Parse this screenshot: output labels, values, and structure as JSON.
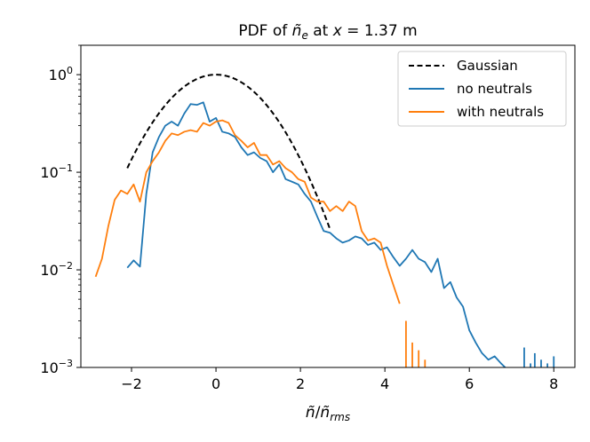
{
  "chart_data": {
    "type": "line",
    "title": "PDF of ñ_e at x = 1.37 m",
    "title_parts": {
      "prefix": "PDF of ",
      "base": "ñ",
      "sub": "e",
      "mid": " at ",
      "var": "x",
      "suffix": " = 1.37 m"
    },
    "xlabel": "ñ/ñ_rms",
    "xlabel_parts": {
      "num": "ñ",
      "slash": "/",
      "den": "ñ",
      "sub": "rms"
    },
    "ylabel": "",
    "xlim": [
      -3.2,
      8.5
    ],
    "ylim": [
      0.001,
      2.0
    ],
    "yscale": "log",
    "x_ticks": [
      -2,
      0,
      2,
      4,
      6,
      8
    ],
    "x_tick_labels": [
      "−2",
      "0",
      "2",
      "4",
      "6",
      "8"
    ],
    "y_ticks": [
      {
        "value": 0.001,
        "base": "10",
        "exp": "−3"
      },
      {
        "value": 0.01,
        "base": "10",
        "exp": "−2"
      },
      {
        "value": 0.1,
        "base": "10",
        "exp": "−1"
      },
      {
        "value": 1,
        "base": "10",
        "exp": "0"
      }
    ],
    "grid": false,
    "legend_position": "top-right",
    "series": [
      {
        "name": "Gaussian",
        "color": "#000000",
        "dash": true,
        "function": "gaussian",
        "x_range": [
          -2.1,
          2.7
        ]
      },
      {
        "name": "no neutrals",
        "color": "#1f77b4",
        "dash": false,
        "x": [
          -2.1,
          -1.95,
          -1.8,
          -1.65,
          -1.5,
          -1.35,
          -1.2,
          -1.05,
          -0.9,
          -0.75,
          -0.6,
          -0.45,
          -0.3,
          -0.15,
          0.0,
          0.15,
          0.3,
          0.45,
          0.6,
          0.75,
          0.9,
          1.05,
          1.2,
          1.35,
          1.5,
          1.65,
          1.8,
          1.95,
          2.1,
          2.25,
          2.4,
          2.55,
          2.7,
          2.85,
          3.0,
          3.15,
          3.3,
          3.45,
          3.6,
          3.75,
          3.9,
          4.05,
          4.2,
          4.35,
          4.5,
          4.65,
          4.8,
          4.95,
          5.1,
          5.25,
          5.4,
          5.55,
          5.7,
          5.85,
          6.0,
          6.15,
          6.3,
          6.45,
          6.6,
          6.75,
          6.85
        ],
        "y": [
          0.0105,
          0.0125,
          0.0108,
          0.06,
          0.16,
          0.23,
          0.3,
          0.33,
          0.3,
          0.4,
          0.5,
          0.49,
          0.52,
          0.33,
          0.36,
          0.26,
          0.25,
          0.23,
          0.18,
          0.15,
          0.16,
          0.14,
          0.13,
          0.1,
          0.12,
          0.085,
          0.08,
          0.075,
          0.06,
          0.05,
          0.035,
          0.025,
          0.024,
          0.021,
          0.019,
          0.02,
          0.022,
          0.021,
          0.018,
          0.019,
          0.016,
          0.017,
          0.0135,
          0.011,
          0.013,
          0.016,
          0.013,
          0.012,
          0.0095,
          0.013,
          0.0065,
          0.0075,
          0.0052,
          0.0042,
          0.0024,
          0.0018,
          0.0014,
          0.0012,
          0.0013,
          0.0011,
          0.001
        ],
        "x_extra": [
          7.3,
          7.45,
          7.55,
          7.7,
          7.85,
          8.0
        ],
        "y_extra": [
          0.0016,
          0.0011,
          0.0014,
          0.0012,
          0.0011,
          0.0013
        ]
      },
      {
        "name": "with neutrals",
        "color": "#ff7f0e",
        "dash": false,
        "x": [
          -2.85,
          -2.7,
          -2.55,
          -2.4,
          -2.25,
          -2.1,
          -1.95,
          -1.8,
          -1.65,
          -1.5,
          -1.35,
          -1.2,
          -1.05,
          -0.9,
          -0.75,
          -0.6,
          -0.45,
          -0.3,
          -0.15,
          0.0,
          0.15,
          0.3,
          0.45,
          0.6,
          0.75,
          0.9,
          1.05,
          1.2,
          1.35,
          1.5,
          1.65,
          1.8,
          1.95,
          2.1,
          2.25,
          2.4,
          2.55,
          2.7,
          2.85,
          3.0,
          3.15,
          3.3,
          3.45,
          3.6,
          3.75,
          3.9,
          4.05,
          4.2,
          4.35
        ],
        "y": [
          0.0085,
          0.013,
          0.028,
          0.052,
          0.065,
          0.06,
          0.075,
          0.05,
          0.1,
          0.13,
          0.16,
          0.21,
          0.25,
          0.24,
          0.26,
          0.27,
          0.26,
          0.32,
          0.3,
          0.33,
          0.34,
          0.32,
          0.24,
          0.21,
          0.18,
          0.2,
          0.15,
          0.15,
          0.12,
          0.13,
          0.11,
          0.1,
          0.085,
          0.08,
          0.055,
          0.05,
          0.05,
          0.04,
          0.045,
          0.04,
          0.05,
          0.045,
          0.025,
          0.02,
          0.021,
          0.019,
          0.011,
          0.007,
          0.0045
        ],
        "x_extra": [
          4.5,
          4.65,
          4.8,
          4.95
        ],
        "y_extra": [
          0.003,
          0.0018,
          0.0015,
          0.0012
        ]
      }
    ]
  }
}
